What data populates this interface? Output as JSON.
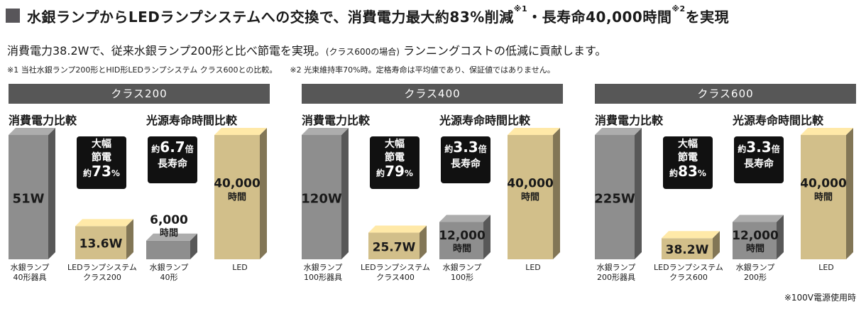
{
  "header": {
    "title_main": "水銀ランプからLEDランプシステムへの交換で、消費電力最大約83%削減",
    "title_ref1": "※1",
    "title_mid": "・長寿命40,000時間",
    "title_ref2": "※2",
    "title_end": "を実現",
    "lead_a": "消費電力38.2Wで、従来水銀ランプ200形と比べ節電を実現。",
    "lead_b": "(クラス600の場合)",
    "lead_c": " ランニングコストの低減に貢献します。",
    "note1": "※1 当社水銀ランプ200形とHID形LEDランプシステム クラス600との比較。",
    "note2": "※2 光束維持率70%時。定格寿命は平均値であり、保証値ではありません。",
    "footer": "※100V電源使用時"
  },
  "colors": {
    "gray_bar": "#8e8e8e",
    "gold_bar": "#d2bf8a",
    "banner": "#575757",
    "badge": "#111111"
  },
  "chart_data": [
    {
      "type": "bar",
      "title": "クラス200",
      "power": {
        "title": "消費電力比較",
        "unit": "W",
        "categories": [
          "水銀ランプ\n40形器具",
          "LEDランプシステム\nクラス200"
        ],
        "values": [
          51,
          13.6
        ],
        "value_labels": [
          "51W",
          "13.6W"
        ],
        "badge": [
          "大幅",
          "節電",
          "約",
          "73",
          "%"
        ]
      },
      "life": {
        "title": "光源寿命時間比較",
        "unit": "時間",
        "categories": [
          "水銀ランプ\n40形",
          "LED"
        ],
        "values": [
          6000,
          40000
        ],
        "value_labels": [
          "6,000",
          "40,000"
        ],
        "unit_label": "時間",
        "badge": [
          "約",
          "6.7",
          "倍",
          "長寿命"
        ]
      }
    },
    {
      "type": "bar",
      "title": "クラス400",
      "power": {
        "title": "消費電力比較",
        "unit": "W",
        "categories": [
          "水銀ランプ\n100形器具",
          "LEDランプシステム\nクラス400"
        ],
        "values": [
          120,
          25.7
        ],
        "value_labels": [
          "120W",
          "25.7W"
        ],
        "badge": [
          "大幅",
          "節電",
          "約",
          "79",
          "%"
        ]
      },
      "life": {
        "title": "光源寿命時間比較",
        "unit": "時間",
        "categories": [
          "水銀ランプ\n100形",
          "LED"
        ],
        "values": [
          12000,
          40000
        ],
        "value_labels": [
          "12,000",
          "40,000"
        ],
        "unit_label": "時間",
        "badge": [
          "約",
          "3.3",
          "倍",
          "長寿命"
        ]
      }
    },
    {
      "type": "bar",
      "title": "クラス600",
      "power": {
        "title": "消費電力比較",
        "unit": "W",
        "categories": [
          "水銀ランプ\n200形器具",
          "LEDランプシステム\nクラス600"
        ],
        "values": [
          225,
          38.2
        ],
        "value_labels": [
          "225W",
          "38.2W"
        ],
        "badge": [
          "大幅",
          "節電",
          "約",
          "83",
          "%"
        ]
      },
      "life": {
        "title": "光源寿命時間比較",
        "unit": "時間",
        "categories": [
          "水銀ランプ\n200形",
          "LED"
        ],
        "values": [
          12000,
          40000
        ],
        "value_labels": [
          "12,000",
          "40,000"
        ],
        "unit_label": "時間",
        "badge": [
          "約",
          "3.3",
          "倍",
          "長寿命"
        ]
      }
    }
  ]
}
